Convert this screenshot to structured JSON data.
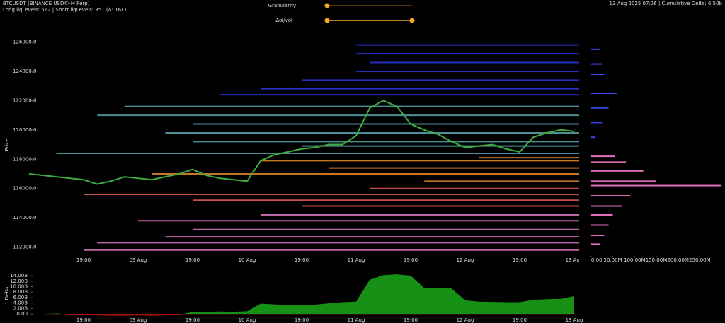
{
  "header": {
    "symbol": "BTCUSDT (BINANCE USD©-M Perp)",
    "levels_info": "Long liqLevels: 512 | Short liqLevels: 351 (Δ: 161)",
    "status": "13 Aug 2025 07:26 | Cumulative Delta: 6.50b"
  },
  "controls": {
    "granularity_label": "Granularity",
    "oi_label": "Δoi/vol"
  },
  "chart_data": [
    {
      "type": "line",
      "y_label": "Price",
      "categories": [
        null,
        null,
        null,
        null,
        "19:00",
        null,
        null,
        null,
        "09 Aug",
        null,
        null,
        null,
        "19:00",
        null,
        null,
        null,
        "10 Aug",
        null,
        null,
        null,
        "19:00",
        null,
        null,
        null,
        "11 Aug",
        null,
        null,
        null,
        "19:00",
        null,
        null,
        null,
        "12 Aug",
        null,
        null,
        null,
        "19:00",
        null,
        null,
        null,
        "13 Aug"
      ],
      "series": [
        {
          "color": "#3fae3f",
          "values": [
            117000,
            116900,
            116800,
            116700,
            116600,
            116300,
            116500,
            116800,
            116700,
            116600,
            116800,
            117000,
            117300,
            116900,
            116700,
            116600,
            116500,
            117900,
            118300,
            118500,
            118700,
            118800,
            119000,
            119000,
            119600,
            121500,
            122000,
            121600,
            120400,
            120000,
            119700,
            119200,
            118800,
            118900,
            119000,
            118700,
            118500,
            119500,
            119800,
            120000,
            119900
          ]
        }
      ],
      "level_groups": [
        {
          "color": "#2a36e0",
          "prices": [
            125800,
            125200,
            124600,
            124000,
            123400,
            122800,
            122400
          ],
          "starts": [
            24,
            24,
            25,
            24,
            20,
            17,
            14
          ]
        },
        {
          "color": "#5aa8b0",
          "prices": [
            121600,
            121000,
            120400,
            119800,
            119200,
            118900,
            118400
          ],
          "starts": [
            7,
            5,
            12,
            10,
            12,
            20,
            2
          ]
        },
        {
          "color": "#e88a2a",
          "prices": [
            118100,
            117900,
            117400,
            117000,
            116500
          ],
          "starts": [
            33,
            17,
            22,
            9,
            29
          ]
        },
        {
          "color": "#e8605a",
          "prices": [
            116000,
            115600,
            115200,
            114800
          ],
          "starts": [
            25,
            4,
            12,
            20
          ]
        },
        {
          "color": "#e07ac8",
          "prices": [
            114200,
            113800,
            113200,
            112700,
            112300,
            111800
          ],
          "starts": [
            17,
            8,
            12,
            10,
            5,
            4
          ]
        }
      ],
      "ylim": [
        111400,
        126700
      ],
      "yticks": [
        {
          "value": 112000,
          "label": "112000.0"
        },
        {
          "value": 114000,
          "label": "114000.0"
        },
        {
          "value": 116000,
          "label": "116000.0"
        },
        {
          "value": 118000,
          "label": "118000.0"
        },
        {
          "value": 120000,
          "label": "120000.0"
        },
        {
          "value": 122000,
          "label": "122000.0"
        },
        {
          "value": 124000,
          "label": "124000.0"
        },
        {
          "value": 126000,
          "label": "126000.0"
        }
      ]
    },
    {
      "type": "hbar",
      "series": [
        {
          "color": "#3a48e8",
          "y": [
            125500,
            124500,
            123800,
            122500,
            121500,
            120500,
            119500
          ],
          "values": [
            20,
            25,
            30,
            60,
            40,
            25,
            10
          ]
        },
        {
          "color": "#e070b8",
          "y": [
            118200,
            117800,
            117200,
            116500,
            116200,
            115500,
            114800,
            114200,
            113500,
            112800,
            112200
          ],
          "values": [
            55,
            80,
            120,
            150,
            300,
            90,
            70,
            50,
            40,
            30,
            20
          ]
        }
      ],
      "xlim": [
        -8,
        308
      ],
      "xticks": [
        {
          "value": 0,
          "label": "0.00"
        },
        {
          "value": 50,
          "label": "50.00M"
        },
        {
          "value": 100,
          "label": "100.00M"
        },
        {
          "value": 150,
          "label": "150.00M"
        },
        {
          "value": 200,
          "label": "200.00M"
        },
        {
          "value": 250,
          "label": "250.00M"
        }
      ]
    },
    {
      "type": "area",
      "y_label": "Delta",
      "categories": [
        null,
        null,
        null,
        null,
        "19:00",
        null,
        null,
        null,
        "09 Aug",
        null,
        null,
        null,
        "19:00",
        null,
        null,
        null,
        "10 Aug",
        null,
        null,
        null,
        "19:00",
        null,
        null,
        null,
        "11 Aug",
        null,
        null,
        null,
        "19:00",
        null,
        null,
        null,
        "12 Aug",
        null,
        null,
        null,
        "19:00",
        null,
        null,
        null,
        "13 Aug"
      ],
      "values": [
        0,
        0,
        0.2,
        -0.2,
        -0.4,
        -0.5,
        -0.6,
        -0.6,
        -0.5,
        -0.6,
        -0.5,
        -0.3,
        0.7,
        0.8,
        0.9,
        0.8,
        1.0,
        3.8,
        3.5,
        3.3,
        3.4,
        3.4,
        3.9,
        4.3,
        4.5,
        12.5,
        14.2,
        14.5,
        14.0,
        9.5,
        9.6,
        9.3,
        5.0,
        4.5,
        4.4,
        4.3,
        4.3,
        5.2,
        5.4,
        5.5,
        6.5
      ],
      "color_positive": "#169116",
      "color_negative": "#dd1515",
      "ylim": [
        -1.5,
        15.3
      ],
      "yticks": [
        {
          "value": 0,
          "label": "0.00"
        },
        {
          "value": 2,
          "label": "2.00B"
        },
        {
          "value": 4,
          "label": "4.00B"
        },
        {
          "value": 6,
          "label": "6.00B"
        },
        {
          "value": 8,
          "label": "8.00B"
        },
        {
          "value": 10,
          "label": "10.00B"
        },
        {
          "value": 12,
          "label": "12.00B"
        },
        {
          "value": 14,
          "label": "14.00B"
        }
      ]
    }
  ]
}
